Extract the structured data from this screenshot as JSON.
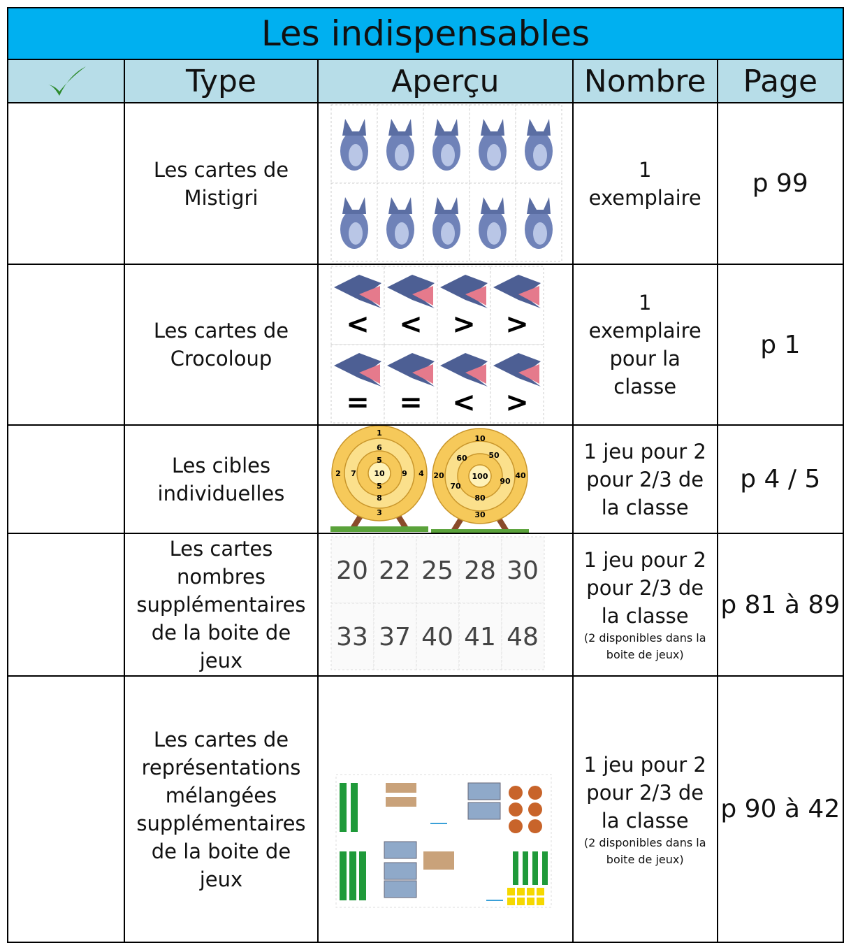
{
  "header": {
    "title": "Les indispensables",
    "columns": [
      "Type",
      "Aperçu",
      "Nombre",
      "Page"
    ]
  },
  "rows": [
    {
      "type": [
        "Les cartes de",
        "Mistigri"
      ],
      "nombre": [
        "1",
        "exemplaire"
      ],
      "page": "p 99"
    },
    {
      "type": [
        "Les cartes de",
        "Crocoloup"
      ],
      "preview": [
        "<",
        "<",
        ">",
        ">",
        "=",
        "=",
        "<",
        ">"
      ],
      "nombre": [
        "1",
        "exemplaire",
        "pour la",
        "classe"
      ],
      "page": "p 1"
    },
    {
      "type": [
        "Les cibles",
        "individuelles"
      ],
      "preview": [
        [
          "1",
          "6",
          "5",
          "10",
          "5",
          "8",
          "3",
          "2",
          "7",
          "9",
          "4"
        ],
        [
          "10",
          "60",
          "50",
          "20",
          "70",
          "100",
          "90",
          "40",
          "80",
          "30"
        ]
      ],
      "nombre": [
        "1 jeu pour 2",
        "pour 2/3 de",
        "la classe"
      ],
      "page": "p 4 / 5"
    },
    {
      "type": [
        "Les cartes",
        "nombres",
        "supplémentaires",
        "de la boite de",
        "jeux"
      ],
      "preview": [
        20,
        22,
        25,
        28,
        30,
        33,
        37,
        40,
        41,
        48
      ],
      "nombre": [
        "1 jeu pour 2",
        "pour 2/3 de",
        "la classe"
      ],
      "note": "(2 disponibles dans la boite de jeux)",
      "page": "p 81 à 89"
    },
    {
      "type": [
        "Les cartes de",
        "représentations",
        "mélangées",
        "supplémentaires",
        "de la boite de",
        "jeux"
      ],
      "nombre": [
        "1 jeu pour 2",
        "pour 2/3 de",
        "la classe"
      ],
      "note": "(2 disponibles dans la boite de jeux)",
      "page": "p 90 à 42"
    }
  ]
}
